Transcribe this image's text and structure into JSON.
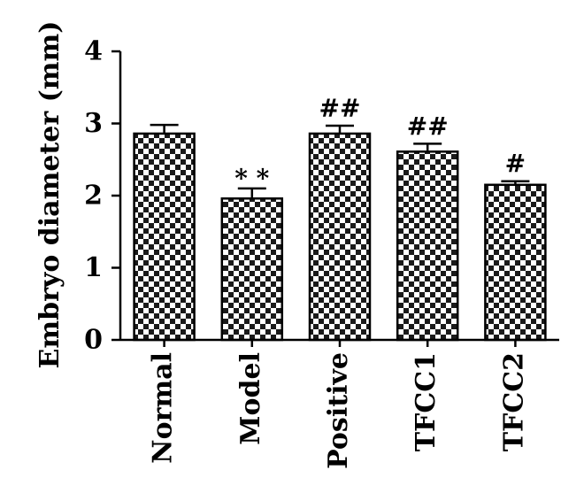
{
  "chart_data": {
    "type": "bar",
    "title": "",
    "xlabel": "",
    "ylabel": "Embryo diameter (mm)",
    "ylim": [
      0,
      4
    ],
    "yticks": [
      0,
      1,
      2,
      3,
      4
    ],
    "grid": false,
    "categories": [
      "Normal",
      "Model",
      "Positive",
      "TFCC1",
      "TFCC2"
    ],
    "values": [
      2.86,
      1.96,
      2.86,
      2.61,
      2.15
    ],
    "errors": [
      0.12,
      0.14,
      0.11,
      0.11,
      0.05
    ],
    "annotations": [
      "",
      "**",
      "##",
      "##",
      "#"
    ],
    "bar_fill": "checkerboard",
    "colors": {
      "bar_dark": "#1a1a1a",
      "bar_light": "#ffffff",
      "axis": "#000000"
    }
  }
}
